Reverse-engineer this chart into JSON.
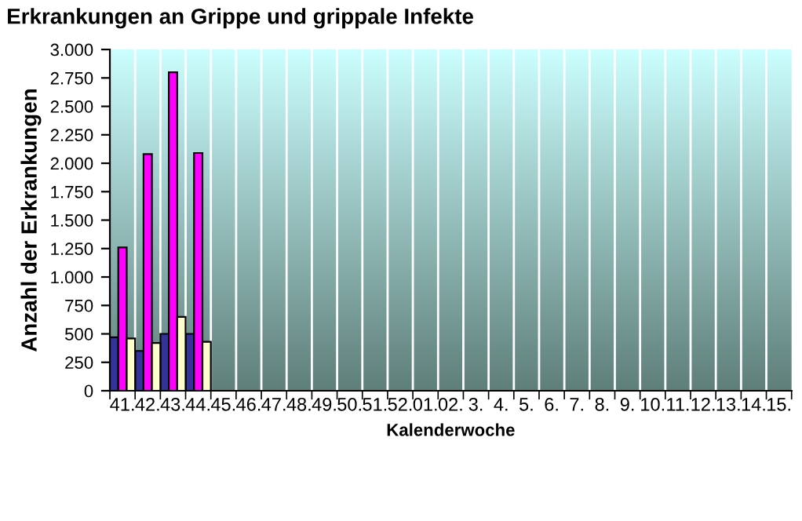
{
  "chart_data": {
    "type": "bar",
    "title": "Erkrankungen an Grippe und grippale Infekte",
    "xlabel": "Kalenderwoche",
    "ylabel": "Anzahl der Erkrankungen",
    "categories": [
      "41.",
      "42.",
      "43.",
      "44.",
      "45.",
      "46.",
      "47.",
      "48.",
      "49.",
      "50.",
      "51.",
      "52.",
      "01.",
      "02.",
      "3.",
      "4.",
      "5.",
      "6.",
      "7.",
      "8.",
      "9.",
      "10.",
      "11.",
      "12.",
      "13.",
      "14.",
      "15."
    ],
    "series": [
      {
        "color": "#333399",
        "values": [
          470,
          350,
          500,
          500,
          null,
          null,
          null,
          null,
          null,
          null,
          null,
          null,
          null,
          null,
          null,
          null,
          null,
          null,
          null,
          null,
          null,
          null,
          null,
          null,
          null,
          null,
          null
        ]
      },
      {
        "color": "#ff00ff",
        "values": [
          1260,
          2080,
          2800,
          2090,
          null,
          null,
          null,
          null,
          null,
          null,
          null,
          null,
          null,
          null,
          null,
          null,
          null,
          null,
          null,
          null,
          null,
          null,
          null,
          null,
          null,
          null,
          null
        ]
      },
      {
        "color": "#ffffcc",
        "values": [
          460,
          420,
          650,
          430,
          null,
          null,
          null,
          null,
          null,
          null,
          null,
          null,
          null,
          null,
          null,
          null,
          null,
          null,
          null,
          null,
          null,
          null,
          null,
          null,
          null,
          null,
          null
        ]
      }
    ],
    "ylim": [
      0,
      3000
    ],
    "yticks": [
      0,
      250,
      500,
      750,
      {
        "value": 1000,
        "label": "1.000"
      },
      {
        "value": 1250,
        "label": "1.250"
      },
      {
        "value": 1500,
        "label": "1.500"
      },
      {
        "value": 1750,
        "label": "1.750"
      },
      {
        "value": 2000,
        "label": "2.000"
      },
      {
        "value": 2250,
        "label": "2.250"
      },
      {
        "value": 2500,
        "label": "2.500"
      },
      {
        "value": 2750,
        "label": "2.750"
      },
      {
        "value": 3000,
        "label": "3.000"
      }
    ],
    "grid": "x"
  }
}
